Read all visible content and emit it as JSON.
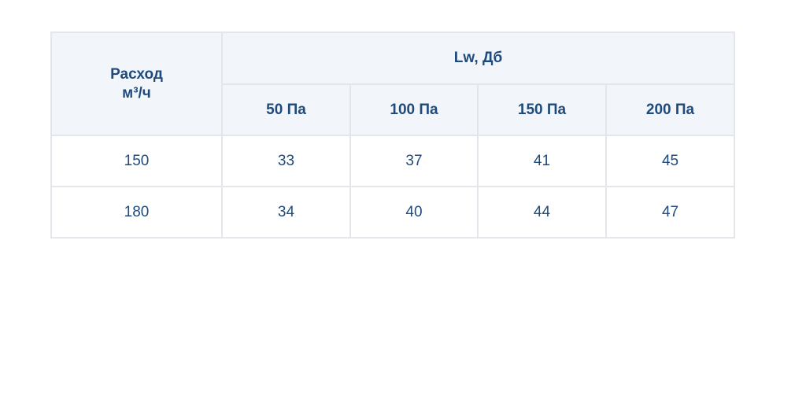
{
  "table": {
    "corner_label": [
      "Расход",
      "м³/ч"
    ],
    "group_label": "Lw, Дб",
    "columns": [
      "50 Па",
      "100 Па",
      "150 Па",
      "200 Па"
    ],
    "rows": [
      [
        150,
        33,
        37,
        41,
        45
      ],
      [
        180,
        34,
        40,
        44,
        47
      ]
    ]
  }
}
